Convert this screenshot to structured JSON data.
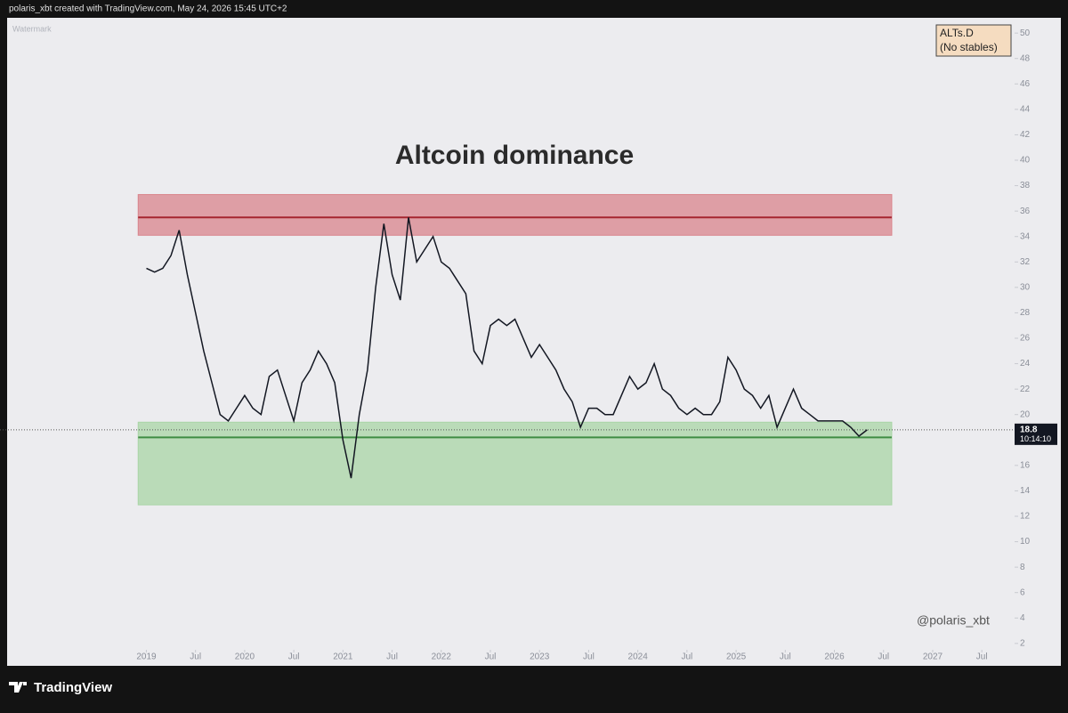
{
  "header": {
    "text": "polaris_xbt created with TradingView.com, May 24, 2026 15:45 UTC+2"
  },
  "footer": {
    "logo": "TradingView"
  },
  "chart_data": {
    "type": "line",
    "title": "Altcoin dominance",
    "watermark": "Watermark",
    "symbol": [
      "ALTs.D",
      "(No stables)"
    ],
    "handle": "@polaris_xbt",
    "color": "#131722",
    "x": [
      "2019-01",
      "2019-02",
      "2019-03",
      "2019-04",
      "2019-05",
      "2019-06",
      "2019-07",
      "2019-08",
      "2019-09",
      "2019-10",
      "2019-11",
      "2019-12",
      "2020-01",
      "2020-02",
      "2020-03",
      "2020-04",
      "2020-05",
      "2020-06",
      "2020-07",
      "2020-08",
      "2020-09",
      "2020-10",
      "2020-11",
      "2020-12",
      "2021-01",
      "2021-02",
      "2021-03",
      "2021-04",
      "2021-05",
      "2021-06",
      "2021-07",
      "2021-08",
      "2021-09",
      "2021-10",
      "2021-11",
      "2021-12",
      "2022-01",
      "2022-02",
      "2022-03",
      "2022-04",
      "2022-05",
      "2022-06",
      "2022-07",
      "2022-08",
      "2022-09",
      "2022-10",
      "2022-11",
      "2022-12",
      "2023-01",
      "2023-02",
      "2023-03",
      "2023-04",
      "2023-05",
      "2023-06",
      "2023-07",
      "2023-08",
      "2023-09",
      "2023-10",
      "2023-11",
      "2023-12",
      "2024-01",
      "2024-02",
      "2024-03",
      "2024-04",
      "2024-05",
      "2024-06",
      "2024-07",
      "2024-08",
      "2024-09",
      "2024-10",
      "2024-11",
      "2024-12",
      "2025-01",
      "2025-02",
      "2025-03",
      "2025-04",
      "2025-05",
      "2025-06",
      "2025-07",
      "2025-08",
      "2025-09",
      "2025-10",
      "2025-11",
      "2025-12",
      "2026-01",
      "2026-02",
      "2026-03",
      "2026-04",
      "2026-05"
    ],
    "values": [
      31.5,
      31.2,
      31.5,
      32.5,
      34.5,
      31,
      28,
      25,
      22.5,
      20,
      19.5,
      20.5,
      21.5,
      20.5,
      20,
      23,
      23.5,
      21.5,
      19.5,
      22.5,
      23.5,
      25,
      24,
      22.5,
      18,
      15,
      20,
      23.5,
      30,
      35,
      31,
      29,
      35.5,
      32,
      33,
      34,
      32,
      31.5,
      30.5,
      29.5,
      25,
      24,
      27,
      27.5,
      27,
      27.5,
      26,
      24.5,
      25.5,
      24.5,
      23.5,
      22,
      21,
      19,
      20.5,
      20.5,
      20,
      20,
      21.5,
      23,
      22,
      22.5,
      24,
      22,
      21.5,
      20.5,
      20,
      20.5,
      20,
      20,
      21,
      24.5,
      23.5,
      22,
      21.5,
      20.5,
      21.5,
      19,
      20.5,
      22,
      20.5,
      20,
      19.5,
      19.5,
      19.5,
      19.5,
      19,
      18.3,
      18.8
    ],
    "zones": [
      {
        "from": "2018-12",
        "to": "2026-08",
        "y0": 34.1,
        "y1": 37.3,
        "color": "#d9848c"
      },
      {
        "from": "2018-12",
        "to": "2026-08",
        "y0": 12.9,
        "y1": 19.4,
        "color": "#a9d5a6"
      }
    ],
    "levels": [
      {
        "value": 35.5,
        "color": "#a5252f"
      },
      {
        "value": 18.2,
        "color": "#3f8c43"
      }
    ],
    "last_price": 18.8,
    "countdown": "10:14:10",
    "xlim": [
      "2017-08",
      "2027-11"
    ],
    "ylim": [
      1.5,
      51.2
    ],
    "yticks": [
      2,
      4,
      6,
      8,
      10,
      12,
      14,
      16,
      18,
      20,
      22,
      24,
      26,
      28,
      30,
      32,
      34,
      36,
      38,
      40,
      42,
      44,
      46,
      48,
      50
    ],
    "xticks": [
      {
        "value": "2019-01",
        "label": "2019"
      },
      {
        "value": "2019-07",
        "label": "Jul"
      },
      {
        "value": "2020-01",
        "label": "2020"
      },
      {
        "value": "2020-07",
        "label": "Jul"
      },
      {
        "value": "2021-01",
        "label": "2021"
      },
      {
        "value": "2021-07",
        "label": "Jul"
      },
      {
        "value": "2022-01",
        "label": "2022"
      },
      {
        "value": "2022-07",
        "label": "Jul"
      },
      {
        "value": "2023-01",
        "label": "2023"
      },
      {
        "value": "2023-07",
        "label": "Jul"
      },
      {
        "value": "2024-01",
        "label": "2024"
      },
      {
        "value": "2024-07",
        "label": "Jul"
      },
      {
        "value": "2025-01",
        "label": "2025"
      },
      {
        "value": "2025-07",
        "label": "Jul"
      },
      {
        "value": "2026-01",
        "label": "2026"
      },
      {
        "value": "2026-07",
        "label": "Jul"
      },
      {
        "value": "2027-01",
        "label": "2027"
      },
      {
        "value": "2027-07",
        "label": "Jul"
      }
    ]
  }
}
